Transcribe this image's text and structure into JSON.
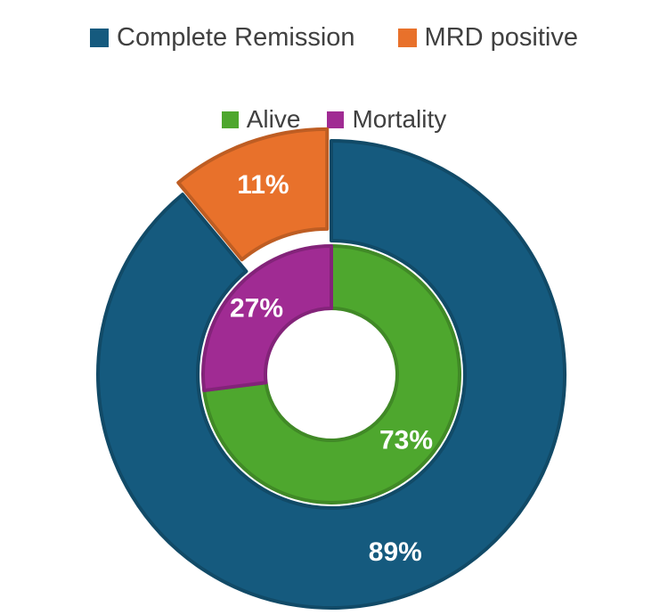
{
  "chart_data": {
    "type": "pie",
    "variant": "nested-donut",
    "rings": [
      {
        "ring": "outer",
        "categories": [
          "Complete Remission",
          "MRD positive"
        ],
        "values": [
          89,
          11
        ],
        "labels": [
          "89%",
          "11%"
        ],
        "colors": [
          "#155a7e",
          "#e8712b"
        ]
      },
      {
        "ring": "inner",
        "categories": [
          "Alive",
          "Mortality"
        ],
        "values": [
          73,
          27
        ],
        "labels": [
          "73%",
          "27%"
        ],
        "colors": [
          "#4ea72e",
          "#a02b93"
        ]
      }
    ],
    "legend_placement": "top"
  }
}
